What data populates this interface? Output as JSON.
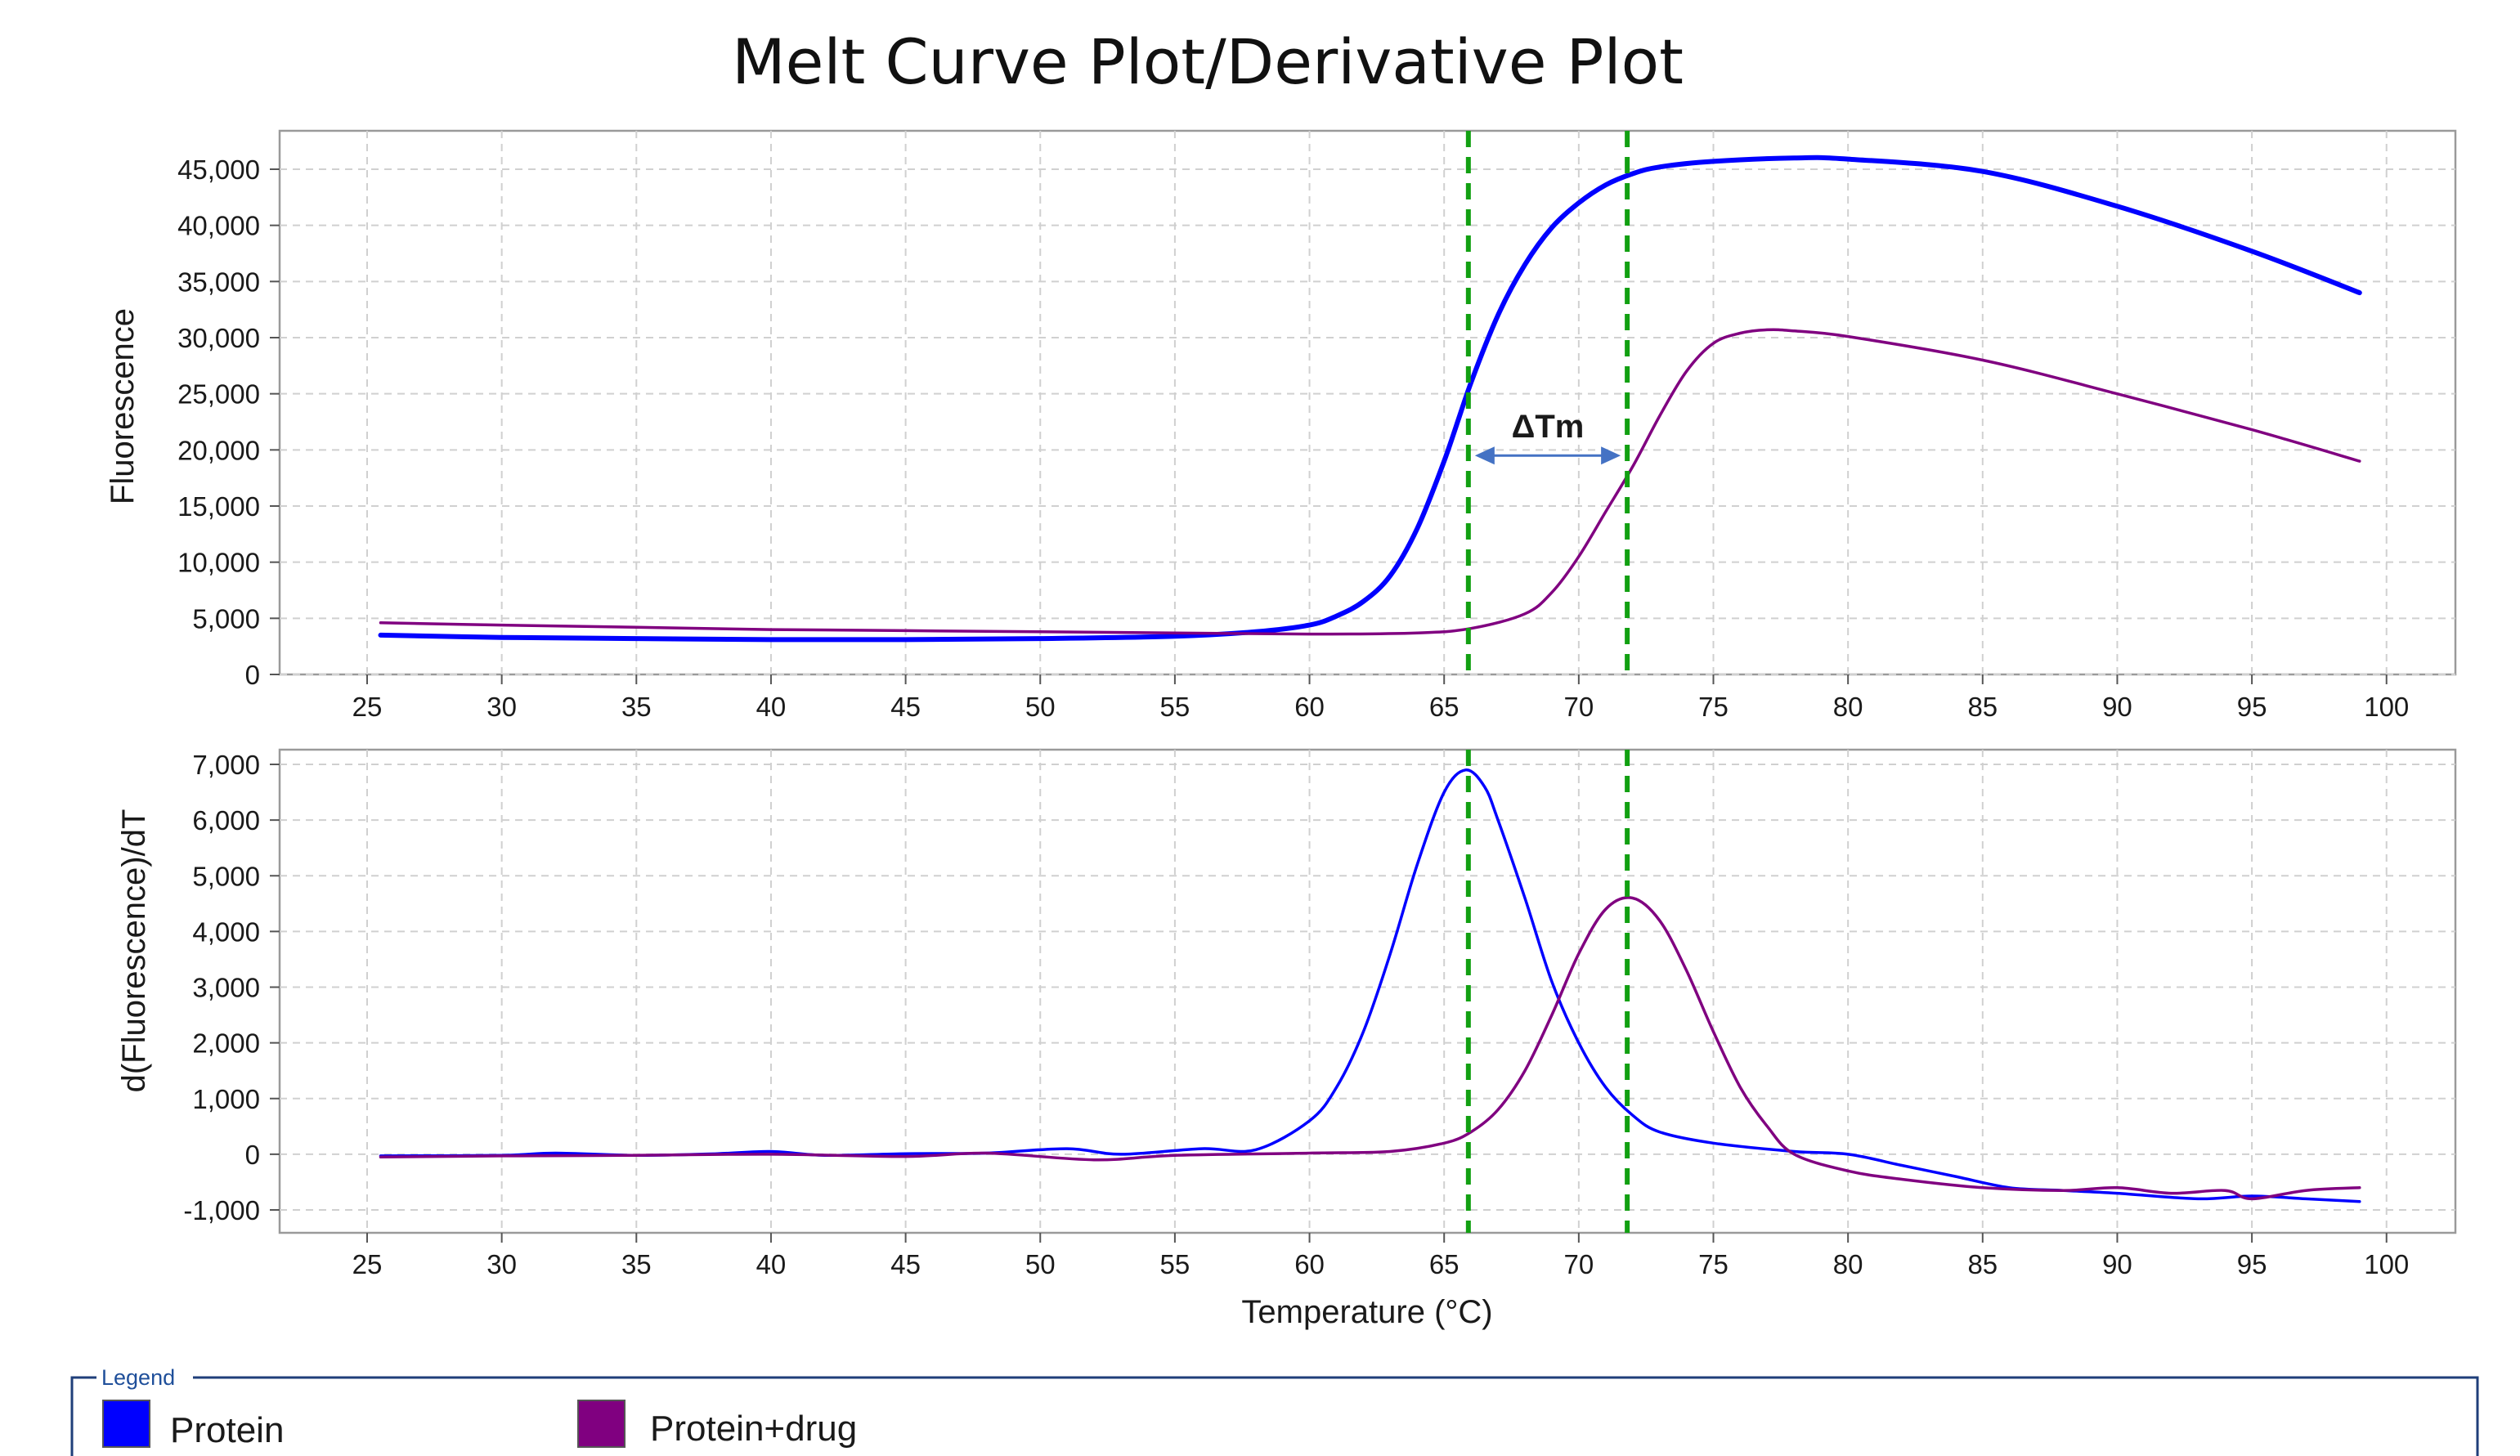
{
  "chart_data": {
    "title": "Melt Curve Plot/Derivative Plot",
    "xlabel": "Temperature (°C)",
    "x_ticks": [
      25,
      30,
      35,
      40,
      45,
      50,
      55,
      60,
      65,
      70,
      75,
      80,
      85,
      90,
      95,
      100
    ],
    "xlim": [
      23.3,
      103.8
    ],
    "legend": {
      "title": "Legend",
      "placement": "bottom",
      "entries": [
        {
          "name": "Protein",
          "color": "#0000ff"
        },
        {
          "name": "Protein+drug",
          "color": "#800080"
        }
      ]
    },
    "annotation": {
      "text": "ΔTm",
      "from_x": 65.9,
      "to_x": 71.8,
      "y": 19500,
      "arrow_color": "#4472c4"
    },
    "vlines": {
      "x": [
        65.9,
        71.8
      ],
      "color": "#12a012",
      "style": "dashed"
    },
    "panels": [
      {
        "type": "line",
        "ylabel": "Fluorescence",
        "ylim": [
          0,
          45000
        ],
        "y_ticks": [
          0,
          5000,
          10000,
          15000,
          20000,
          25000,
          30000,
          35000,
          40000,
          45000
        ],
        "y_tick_labels": [
          "0",
          "5,000",
          "10,000",
          "15,000",
          "20,000",
          "25,000",
          "30,000",
          "35,000",
          "40,000",
          "45,000"
        ],
        "grid": true,
        "series": [
          {
            "name": "Protein",
            "color": "#0000ff",
            "width": 6,
            "x": [
              25.5,
              30,
              35,
              40,
              45,
              50,
              55,
              58,
              60,
              61,
              62,
              63,
              64,
              65,
              66,
              67,
              68,
              69,
              70,
              71,
              72,
              73,
              75,
              78,
              80,
              85,
              90,
              95,
              99
            ],
            "y": [
              3500,
              3300,
              3200,
              3100,
              3100,
              3200,
              3400,
              3800,
              4400,
              5200,
              6500,
              8800,
              13000,
              19000,
              26000,
              32000,
              36500,
              39800,
              42000,
              43600,
              44600,
              45200,
              45700,
              46000,
              45900,
              44800,
              41700,
              37700,
              34000
            ]
          },
          {
            "name": "Protein+drug",
            "color": "#800080",
            "width": 3.5,
            "x": [
              25.5,
              30,
              35,
              40,
              45,
              50,
              55,
              60,
              64,
              66,
              68,
              69,
              70,
              71,
              72,
              73,
              74,
              75,
              76,
              77,
              78,
              80,
              85,
              90,
              95,
              99
            ],
            "y": [
              4600,
              4400,
              4200,
              4000,
              3900,
              3800,
              3700,
              3600,
              3700,
              4100,
              5400,
              7300,
              10500,
              14500,
              18500,
              23000,
              27000,
              29500,
              30400,
              30700,
              30600,
              30100,
              28000,
              25000,
              21800,
              19000
            ]
          }
        ]
      },
      {
        "type": "line",
        "ylabel": "d(Fluorescence)/dT",
        "ylim": [
          -1300,
          7300
        ],
        "y_ticks": [
          -1000,
          0,
          1000,
          2000,
          3000,
          4000,
          5000,
          6000,
          7000
        ],
        "y_tick_labels": [
          "-1,000",
          "0",
          "1,000",
          "2,000",
          "3,000",
          "4,000",
          "5,000",
          "6,000",
          "7,000"
        ],
        "grid": true,
        "series": [
          {
            "name": "Protein",
            "color": "#0000ff",
            "width": 3.5,
            "x": [
              25.5,
              30,
              32,
              35,
              38,
              40,
              42,
              45,
              48,
              51,
              53,
              56,
              58,
              60,
              61,
              62,
              63,
              64,
              65,
              65.8,
              66.5,
              67,
              68,
              69,
              70,
              71,
              72,
              73,
              75,
              78,
              80,
              82,
              84,
              86,
              88,
              90,
              93,
              95,
              97,
              99
            ],
            "y": [
              -30,
              -20,
              20,
              -20,
              10,
              50,
              -20,
              10,
              20,
              100,
              0,
              100,
              80,
              600,
              1200,
              2200,
              3600,
              5200,
              6500,
              6900,
              6600,
              6000,
              4600,
              3100,
              2000,
              1200,
              700,
              400,
              200,
              50,
              0,
              -200,
              -400,
              -600,
              -650,
              -700,
              -800,
              -750,
              -800,
              -850
            ]
          },
          {
            "name": "Protein+drug",
            "color": "#800080",
            "width": 3.5,
            "x": [
              25.5,
              30,
              35,
              40,
              45,
              48,
              52,
              55,
              60,
              63,
              65,
              66,
              67,
              68,
              69,
              70,
              71,
              72,
              73,
              74,
              75,
              76,
              77,
              78,
              80,
              82,
              85,
              88,
              90,
              92,
              94,
              95,
              97,
              99
            ],
            "y": [
              -50,
              -30,
              -20,
              0,
              -40,
              20,
              -100,
              -20,
              20,
              50,
              200,
              400,
              800,
              1500,
              2500,
              3600,
              4400,
              4600,
              4200,
              3300,
              2200,
              1200,
              500,
              0,
              -300,
              -450,
              -600,
              -650,
              -600,
              -700,
              -650,
              -800,
              -650,
              -600
            ]
          }
        ]
      }
    ]
  }
}
